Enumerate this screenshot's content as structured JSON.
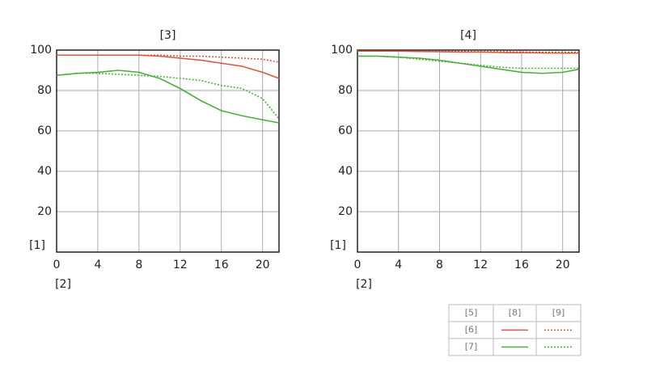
{
  "chart_data": [
    {
      "type": "line",
      "title": "[3]",
      "y_label": "[1]",
      "x_label": "[2]",
      "x": [
        0,
        2,
        4,
        6,
        8,
        10,
        12,
        14,
        16,
        18,
        20,
        21.6
      ],
      "xlim": [
        0,
        21.6
      ],
      "xticks": [
        0,
        4,
        8,
        12,
        16,
        20
      ],
      "ylim": [
        0,
        100
      ],
      "yticks": [
        20,
        40,
        60,
        80,
        100
      ],
      "grid": true,
      "series": [
        {
          "color": "#e0553a",
          "dash": false,
          "values": [
            97.5,
            97.5,
            97.5,
            97.5,
            97.5,
            97,
            96,
            95,
            93.5,
            92,
            89,
            86
          ]
        },
        {
          "color": "#e0553a",
          "dash": true,
          "values": [
            97.5,
            97.5,
            97.5,
            97.5,
            97.5,
            97.5,
            97,
            97,
            96.5,
            96,
            95.5,
            94
          ]
        },
        {
          "color": "#4caf3c",
          "dash": false,
          "values": [
            87.5,
            88.5,
            89,
            90,
            89,
            86,
            81,
            75,
            70,
            67.5,
            65.5,
            64
          ]
        },
        {
          "color": "#4caf3c",
          "dash": true,
          "values": [
            87.5,
            88.5,
            88.5,
            88,
            87.5,
            87,
            86,
            85,
            82.5,
            81,
            76,
            66
          ]
        }
      ]
    },
    {
      "type": "line",
      "title": "[4]",
      "y_label": "[1]",
      "x_label": "[2]",
      "x": [
        0,
        2,
        4,
        6,
        8,
        10,
        12,
        14,
        16,
        18,
        20,
        21.6
      ],
      "xlim": [
        0,
        21.6
      ],
      "xticks": [
        0,
        4,
        8,
        12,
        16,
        20
      ],
      "ylim": [
        0,
        100
      ],
      "yticks": [
        20,
        40,
        60,
        80,
        100
      ],
      "grid": true,
      "series": [
        {
          "color": "#e0553a",
          "dash": false,
          "values": [
            99.5,
            99.5,
            99.5,
            99.3,
            99.2,
            99,
            99,
            98.8,
            98.7,
            98.6,
            98.5,
            98.5
          ]
        },
        {
          "color": "#e0553a",
          "dash": true,
          "values": [
            99.5,
            99.5,
            99.5,
            99.5,
            99.4,
            99.3,
            99.2,
            99.2,
            99.1,
            99,
            99,
            99
          ]
        },
        {
          "color": "#4caf3c",
          "dash": false,
          "values": [
            97,
            97,
            96.5,
            96,
            95,
            93.5,
            92,
            90.5,
            89,
            88.5,
            89,
            90.5
          ]
        },
        {
          "color": "#4caf3c",
          "dash": true,
          "values": [
            97,
            97,
            96.5,
            95.5,
            94.5,
            93.5,
            92.5,
            91.5,
            91,
            91,
            91,
            91
          ]
        }
      ]
    }
  ],
  "legend": {
    "header": [
      "[5]",
      "[8]",
      "[9]"
    ],
    "rows": [
      "[6]",
      "[7]"
    ]
  }
}
